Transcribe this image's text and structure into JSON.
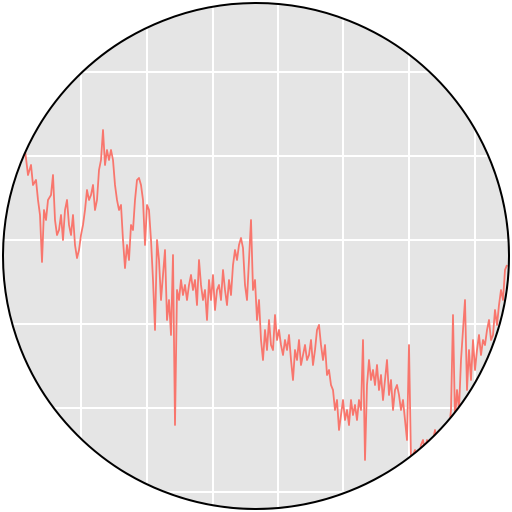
{
  "chart_data": {
    "type": "line",
    "color": "#f8766d",
    "grid": true,
    "xlim": [
      0,
      512
    ],
    "ylim": [
      0,
      512
    ],
    "xticks": [
      81,
      147,
      213,
      278,
      343,
      409,
      475
    ],
    "yticks": [
      20,
      104,
      188,
      272,
      356,
      440
    ],
    "x": [
      25,
      28,
      31,
      33,
      36,
      38,
      40,
      42,
      44,
      46,
      48,
      51,
      53,
      55,
      57,
      59,
      61,
      63,
      65,
      67,
      69,
      71,
      73,
      75,
      77,
      79,
      81,
      83,
      85,
      87,
      89,
      91,
      93,
      95,
      97,
      99,
      101,
      103,
      105,
      107,
      109,
      111,
      113,
      115,
      117,
      119,
      121,
      123,
      125,
      127,
      129,
      131,
      133,
      135,
      137,
      139,
      141,
      143,
      145,
      147,
      149,
      151,
      153,
      155,
      157,
      159,
      161,
      163,
      165,
      167,
      169,
      171,
      173,
      175,
      177,
      179,
      181,
      183,
      185,
      187,
      189,
      191,
      193,
      195,
      197,
      199,
      201,
      203,
      205,
      207,
      209,
      211,
      213,
      215,
      217,
      219,
      221,
      223,
      225,
      227,
      229,
      231,
      233,
      235,
      237,
      239,
      241,
      243,
      245,
      247,
      249,
      251,
      253,
      255,
      257,
      259,
      261,
      263,
      265,
      267,
      269,
      271,
      273,
      275,
      277,
      279,
      281,
      283,
      285,
      287,
      289,
      291,
      293,
      295,
      297,
      299,
      301,
      303,
      305,
      307,
      309,
      311,
      313,
      315,
      317,
      319,
      321,
      323,
      325,
      327,
      329,
      331,
      333,
      335,
      337,
      339,
      341,
      343,
      345,
      347,
      349,
      351,
      353,
      355,
      357,
      359,
      361,
      363,
      365,
      367,
      369,
      371,
      373,
      375,
      377,
      379,
      381,
      383,
      385,
      387,
      389,
      391,
      393,
      395,
      397,
      399,
      401,
      403,
      405,
      407,
      409,
      411,
      413,
      415,
      417,
      419,
      421,
      423,
      425,
      427,
      429,
      431,
      433,
      435,
      437,
      439,
      441,
      443,
      445,
      447,
      449,
      451,
      453,
      455,
      457,
      459,
      461,
      463,
      465,
      467,
      469,
      471,
      473,
      475,
      477,
      479,
      481,
      483,
      485,
      487,
      489,
      491,
      493,
      495,
      497,
      499,
      501,
      503,
      505,
      507
    ],
    "y": [
      362,
      337,
      347,
      327,
      332,
      312,
      297,
      250,
      302,
      292,
      312,
      317,
      337,
      292,
      277,
      282,
      297,
      272,
      302,
      312,
      287,
      277,
      297,
      267,
      254,
      262,
      277,
      287,
      302,
      322,
      312,
      317,
      327,
      302,
      312,
      342,
      352,
      382,
      347,
      362,
      352,
      362,
      352,
      327,
      312,
      302,
      307,
      272,
      244,
      267,
      252,
      287,
      282,
      312,
      332,
      334,
      327,
      312,
      267,
      307,
      302,
      272,
      232,
      182,
      272,
      252,
      212,
      237,
      262,
      192,
      212,
      177,
      257,
      87,
      222,
      212,
      232,
      217,
      227,
      212,
      227,
      237,
      222,
      232,
      207,
      252,
      227,
      212,
      222,
      192,
      232,
      212,
      237,
      202,
      222,
      227,
      212,
      242,
      222,
      207,
      232,
      217,
      247,
      262,
      252,
      267,
      274,
      264,
      227,
      212,
      252,
      292,
      222,
      232,
      192,
      212,
      172,
      152,
      182,
      162,
      192,
      167,
      162,
      197,
      172,
      182,
      167,
      157,
      172,
      162,
      177,
      152,
      132,
      162,
      152,
      172,
      147,
      157,
      167,
      152,
      157,
      172,
      147,
      162,
      182,
      187,
      167,
      152,
      167,
      137,
      142,
      127,
      122,
      102,
      112,
      82,
      97,
      112,
      92,
      102,
      87,
      112,
      97,
      107,
      92,
      112,
      102,
      172,
      52,
      127,
      152,
      132,
      142,
      127,
      147,
      122,
      137,
      112,
      132,
      152,
      117,
      132,
      102,
      122,
      127,
      117,
      102,
      112,
      92,
      72,
      167,
      52,
      57,
      62,
      42,
      57,
      67,
      72,
      62,
      72,
      67,
      57,
      72,
      82,
      62,
      67,
      57,
      72,
      52,
      67,
      82,
      102,
      197,
      92,
      122,
      102,
      152,
      182,
      212,
      122,
      162,
      132,
      172,
      142,
      162,
      177,
      157,
      172,
      167,
      182,
      192,
      172,
      177,
      202,
      187,
      207,
      222,
      212,
      242,
      247
    ]
  }
}
